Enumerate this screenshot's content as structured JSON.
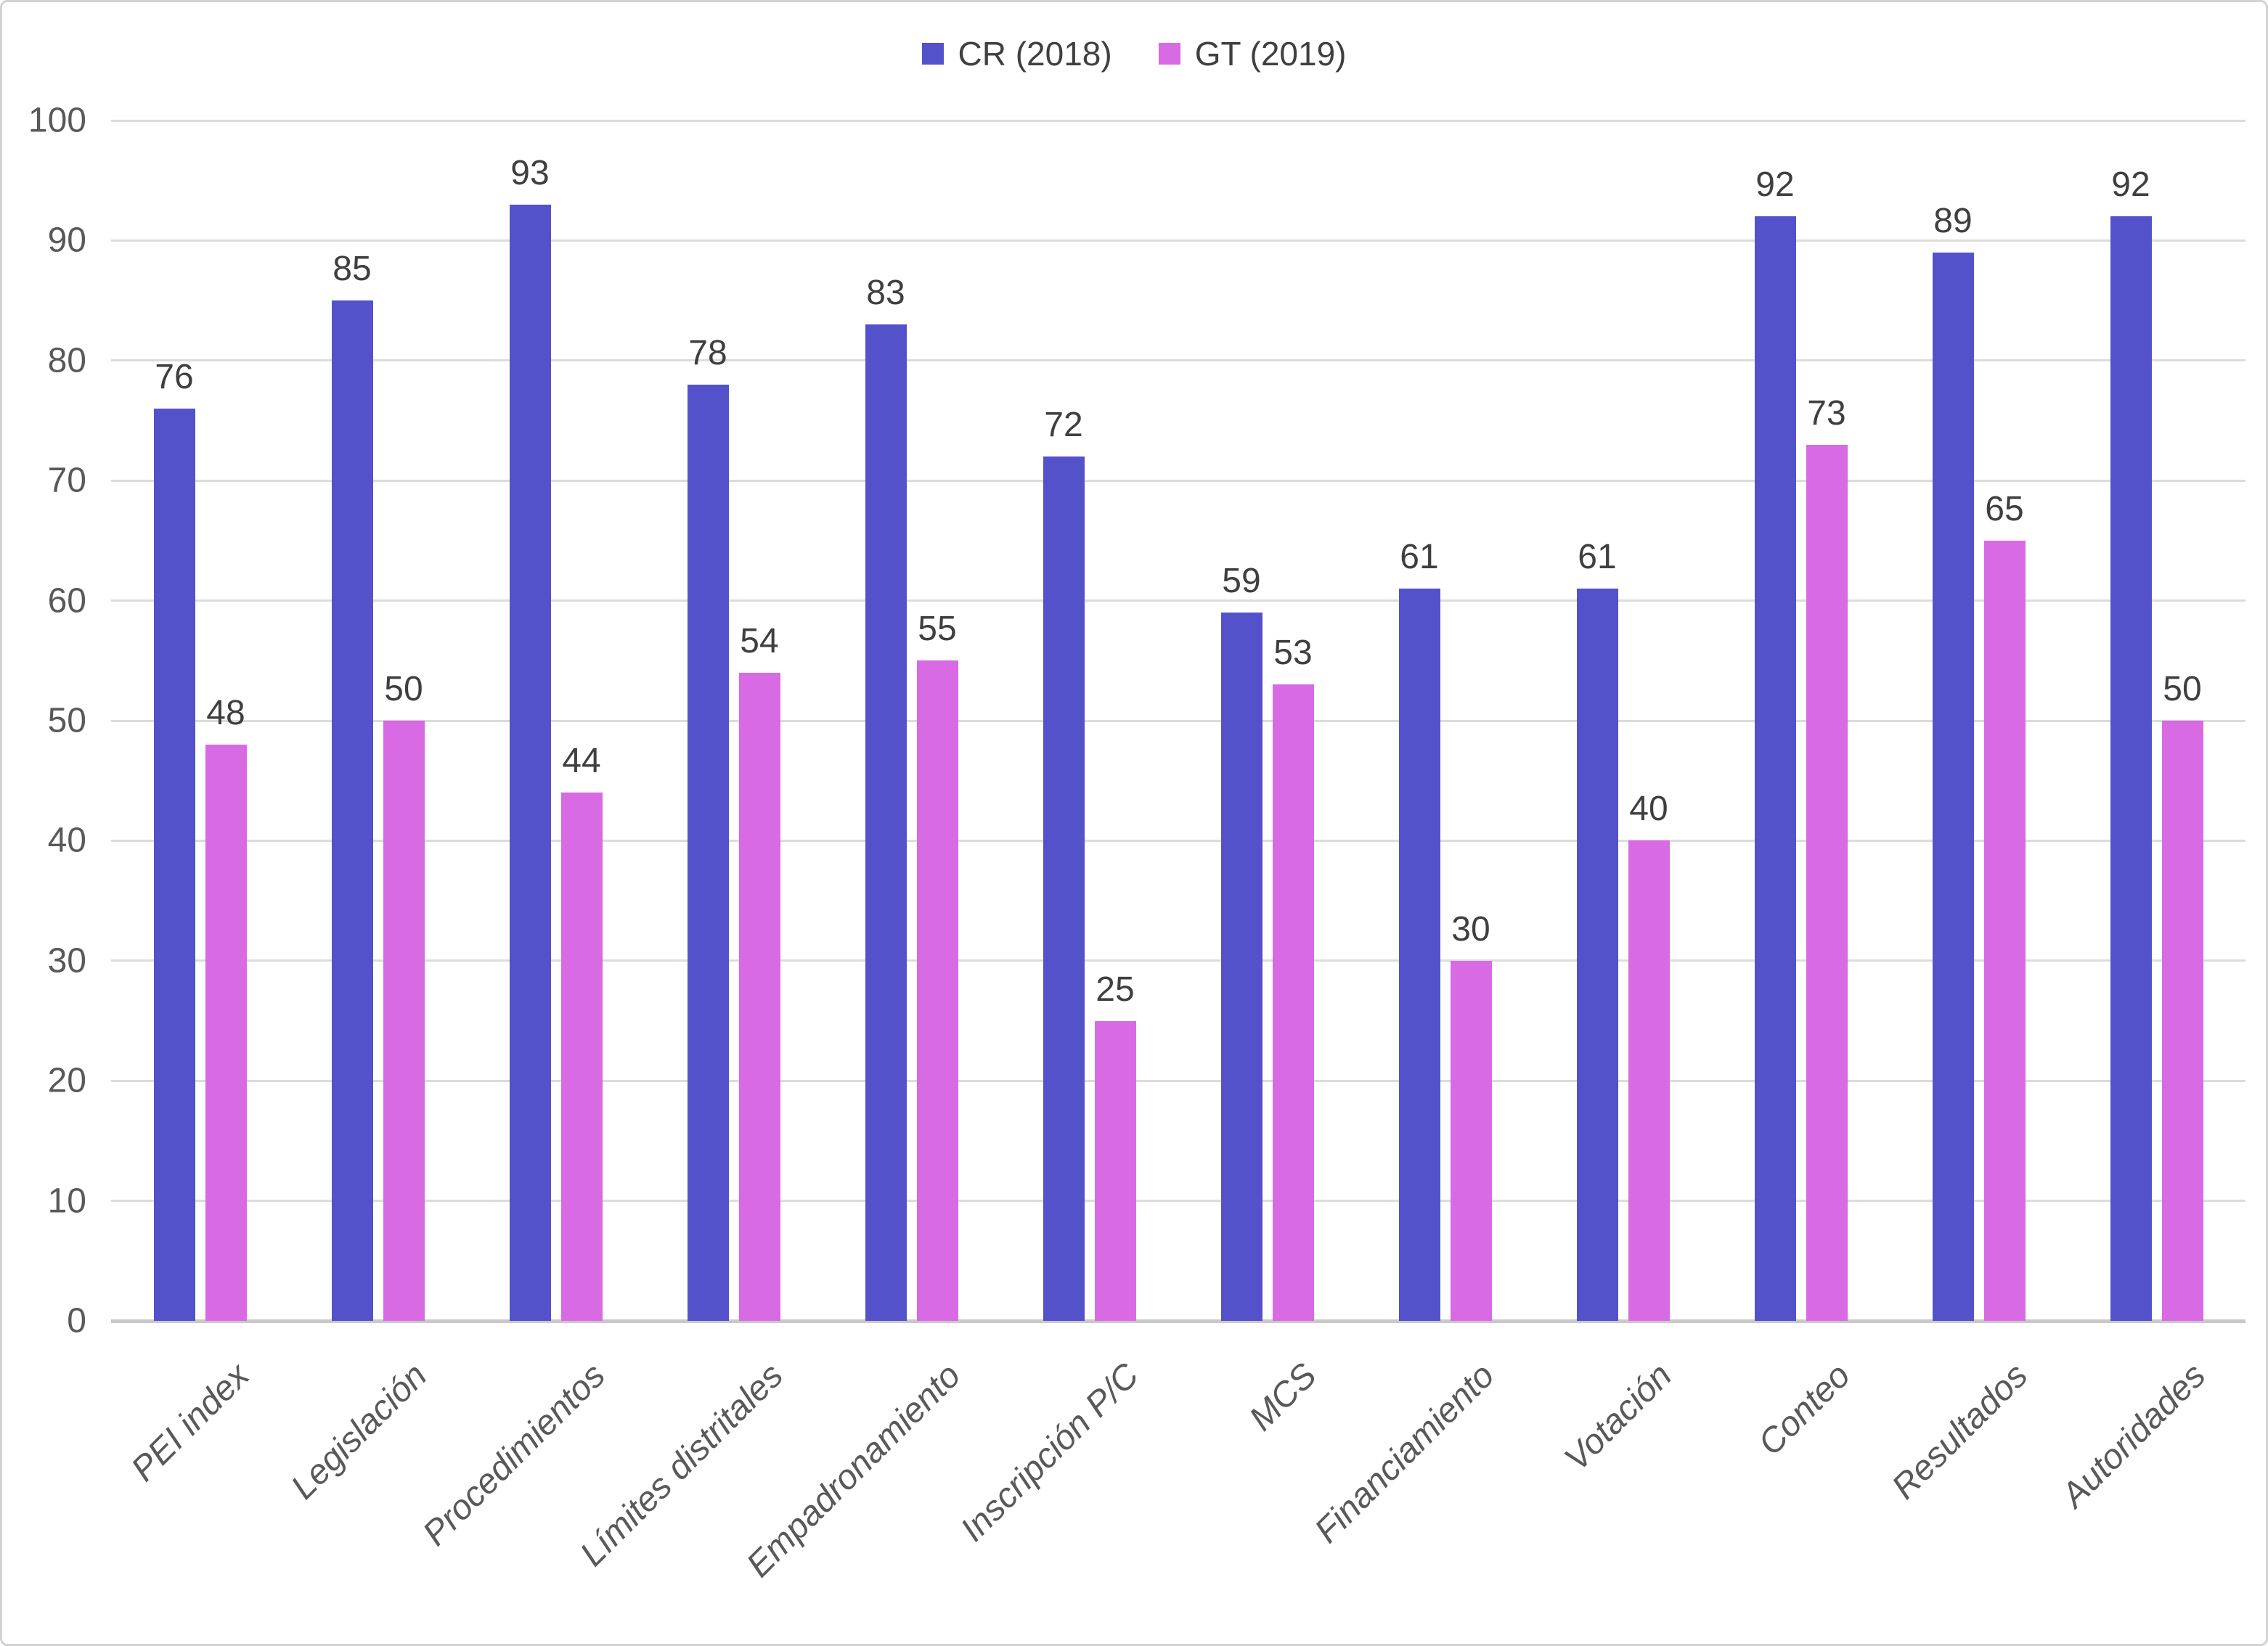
{
  "chart_data": {
    "type": "bar",
    "title": "",
    "xlabel": "",
    "ylabel": "",
    "categories": [
      "PEI index",
      "Legislación",
      "Procedimientos",
      "Límites distritales",
      "Empadronamiento",
      "Inscripción P/C",
      "MCS",
      "Financiamiento",
      "Votación",
      "Conteo",
      "Resultados",
      "Autoridades"
    ],
    "series": [
      {
        "name": "CR (2018)",
        "color": "#5452cb",
        "values": [
          76,
          85,
          93,
          78,
          83,
          72,
          59,
          61,
          61,
          92,
          89,
          92
        ]
      },
      {
        "name": "GT (2019)",
        "color": "#d86ae3",
        "values": [
          48,
          50,
          44,
          54,
          55,
          25,
          53,
          30,
          40,
          73,
          65,
          50
        ]
      }
    ],
    "ylim": [
      0,
      100
    ],
    "yticks": [
      0,
      10,
      20,
      30,
      40,
      50,
      60,
      70,
      80,
      90,
      100
    ],
    "grid": "horizontal",
    "legend_position": "top-center",
    "value_labels": "above-bars",
    "x_label_style": "rotated-45-italic"
  },
  "styles": {
    "background": "#ffffff",
    "border_color": "#d3d3d3",
    "grid_color": "#dcdcdc",
    "axis_line_color": "#c9c9c9",
    "tick_label_color": "#595959",
    "value_label_color": "#3f3f3f",
    "legend_text_color": "#404040"
  }
}
